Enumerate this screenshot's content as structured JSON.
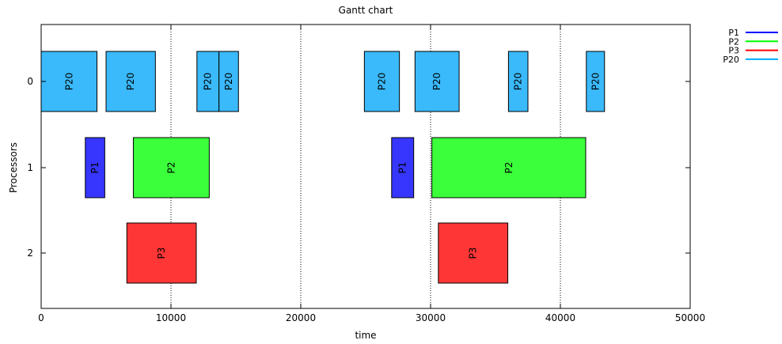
{
  "chart_data": {
    "type": "gantt",
    "title": "Gantt chart",
    "xlabel": "time",
    "ylabel": "Processors",
    "xlim": [
      0,
      50000
    ],
    "x_ticks": [
      0,
      10000,
      20000,
      30000,
      40000,
      50000
    ],
    "y_ticks": [
      0,
      1,
      2
    ],
    "vertical_gridlines_at": [
      10000,
      20000,
      30000,
      40000
    ],
    "legend_position": "top-right",
    "legend": [
      {
        "name": "P1",
        "color": "#0000ff"
      },
      {
        "name": "P2",
        "color": "#00ff00"
      },
      {
        "name": "P3",
        "color": "#ff0000"
      },
      {
        "name": "P20",
        "color": "#00aaff"
      }
    ],
    "tasks": [
      {
        "label": "P20",
        "processor": 0,
        "start": 0,
        "end": 4300,
        "color": "#3ab9fb"
      },
      {
        "label": "P20",
        "processor": 0,
        "start": 5000,
        "end": 8800,
        "color": "#3ab9fb"
      },
      {
        "label": "P20",
        "processor": 0,
        "start": 12000,
        "end": 13700,
        "color": "#3ab9fb"
      },
      {
        "label": "P20",
        "processor": 0,
        "start": 13700,
        "end": 15200,
        "color": "#3ab9fb"
      },
      {
        "label": "P20",
        "processor": 0,
        "start": 24900,
        "end": 27600,
        "color": "#3ab9fb"
      },
      {
        "label": "P20",
        "processor": 0,
        "start": 28800,
        "end": 32200,
        "color": "#3ab9fb"
      },
      {
        "label": "P20",
        "processor": 0,
        "start": 36000,
        "end": 37500,
        "color": "#3ab9fb"
      },
      {
        "label": "P20",
        "processor": 0,
        "start": 42000,
        "end": 43400,
        "color": "#3ab9fb"
      },
      {
        "label": "P1",
        "processor": 1,
        "start": 3400,
        "end": 4900,
        "color": "#3636ff"
      },
      {
        "label": "P2",
        "processor": 1,
        "start": 7100,
        "end": 12950,
        "color": "#3aff3a"
      },
      {
        "label": "P1",
        "processor": 1,
        "start": 27000,
        "end": 28700,
        "color": "#3636ff"
      },
      {
        "label": "P2",
        "processor": 1,
        "start": 30100,
        "end": 41950,
        "color": "#3aff3a"
      },
      {
        "label": "P3",
        "processor": 2,
        "start": 6600,
        "end": 11950,
        "color": "#ff3636"
      },
      {
        "label": "P3",
        "processor": 2,
        "start": 30600,
        "end": 35950,
        "color": "#ff3636"
      }
    ]
  }
}
